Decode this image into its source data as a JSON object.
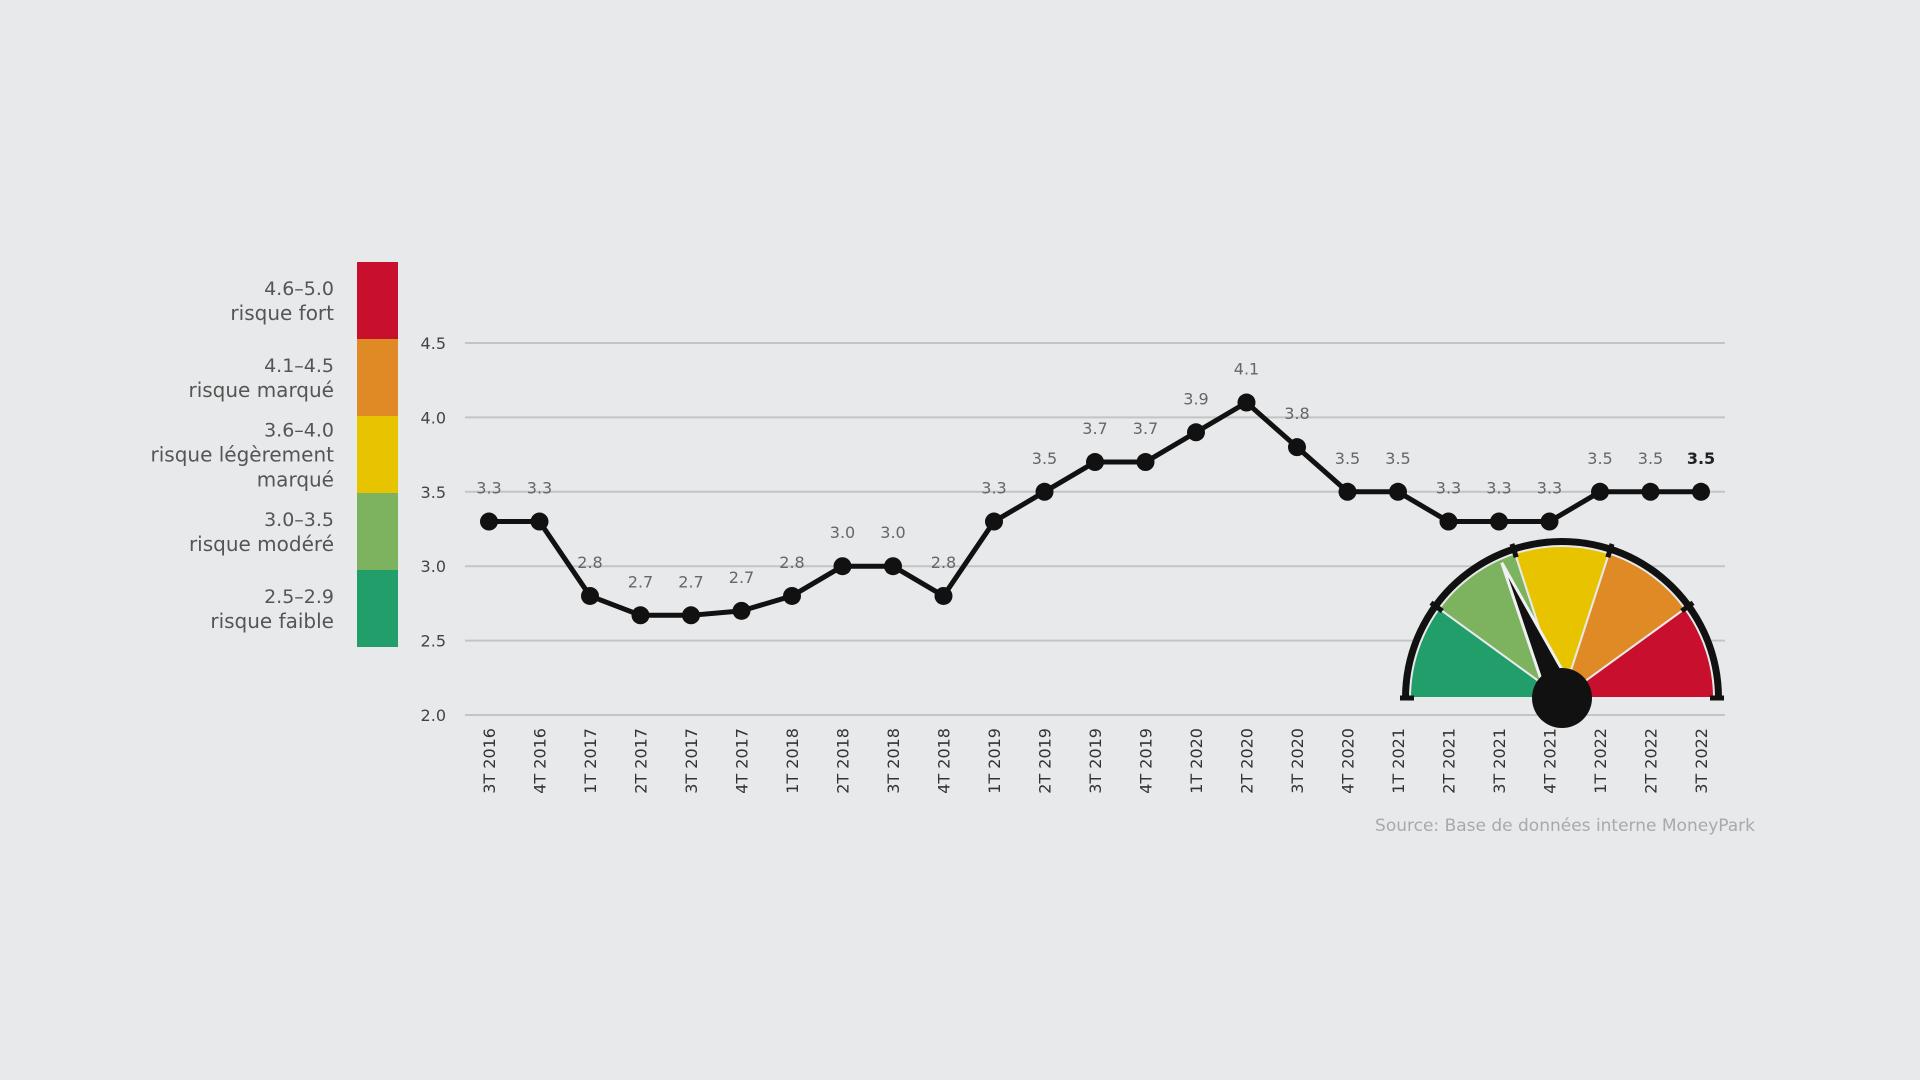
{
  "chart_data": {
    "type": "line",
    "categories": [
      "3T 2016",
      "4T 2016",
      "1T 2017",
      "2T 2017",
      "3T 2017",
      "4T 2017",
      "1T 2018",
      "2T 2018",
      "3T 2018",
      "4T 2018",
      "1T 2019",
      "2T 2019",
      "3T 2019",
      "4T 2019",
      "1T 2020",
      "2T 2020",
      "3T 2020",
      "4T 2020",
      "1T 2021",
      "2T 2021",
      "3T 2021",
      "4T 2021",
      "1T 2022",
      "2T 2022",
      "3T 2022"
    ],
    "values": [
      3.3,
      3.3,
      2.8,
      2.67,
      2.67,
      2.7,
      2.8,
      3.0,
      3.0,
      2.8,
      3.3,
      3.5,
      3.7,
      3.7,
      3.9,
      4.1,
      3.8,
      3.5,
      3.5,
      3.3,
      3.3,
      3.3,
      3.5,
      3.5,
      3.5
    ],
    "data_labels": [
      "3.3",
      "3.3",
      "2.8",
      "2.7",
      "2.7",
      "2.7",
      "2.8",
      "3.0",
      "3.0",
      "2.8",
      "3.3",
      "3.5",
      "3.7",
      "3.7",
      "3.9",
      "4.1",
      "3.8",
      "3.5",
      "3.5",
      "3.3",
      "3.3",
      "3.3",
      "3.5",
      "3.5",
      "3.5"
    ],
    "yticks": [
      "2.0",
      "2.5",
      "3.0",
      "3.5",
      "4.0",
      "4.5"
    ],
    "ylim": [
      2.0,
      4.5
    ],
    "grid": true,
    "line_color": "#111111",
    "risk_scale": [
      {
        "range": "4.6–5.0",
        "label": "risque fort",
        "color": "#c8102e"
      },
      {
        "range": "4.1–4.5",
        "label": "risque marqué",
        "color": "#e08a25"
      },
      {
        "range": "3.6–4.0",
        "label": [
          "risque légèrement",
          "marqué"
        ],
        "color": "#e8c400"
      },
      {
        "range": "3.0–3.5",
        "label": "risque modéré",
        "color": "#7db35e"
      },
      {
        "range": "2.5–2.9",
        "label": "risque faible",
        "color": "#229e6a"
      }
    ],
    "gauge": {
      "value": 3.5,
      "segment_colors": [
        "#229e6a",
        "#7db35e",
        "#e8c400",
        "#e08a25",
        "#c8102e"
      ]
    },
    "source": "Source: Base de données interne MoneyPark"
  }
}
